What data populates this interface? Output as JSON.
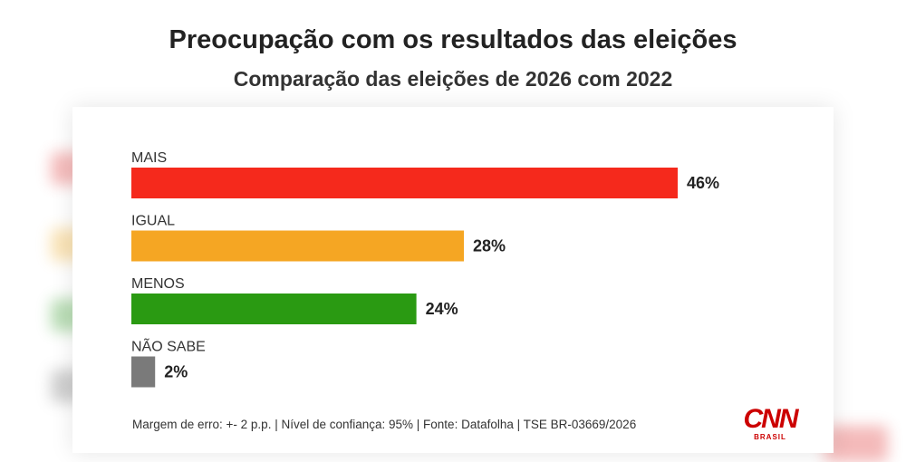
{
  "chart_data": {
    "type": "bar",
    "orientation": "horizontal",
    "title": "Preocupação com os resultados das eleições",
    "subtitle": "Comparação das eleições de 2026 com 2022",
    "categories": [
      "MAIS",
      "IGUAL",
      "MENOS",
      "NÃO SABE"
    ],
    "values": [
      46,
      28,
      24,
      2
    ],
    "value_labels": [
      "46%",
      "28%",
      "24%",
      "2%"
    ],
    "colors": [
      "#f5291c",
      "#f5a623",
      "#2a9a12",
      "#7a7a7a"
    ],
    "xlim": [
      0,
      46
    ],
    "grid": false,
    "legend": "none"
  },
  "footer": {
    "note": "Margem de erro: +- 2 p.p. | Nível de confiança: 95% | Fonte: Datafolha | TSE BR-03669/2026"
  },
  "logo": {
    "main": "CNN",
    "sub": "BRASIL"
  },
  "ghost_colors": [
    "#e34040",
    "#f0b030",
    "#3aa030",
    "#777777"
  ]
}
